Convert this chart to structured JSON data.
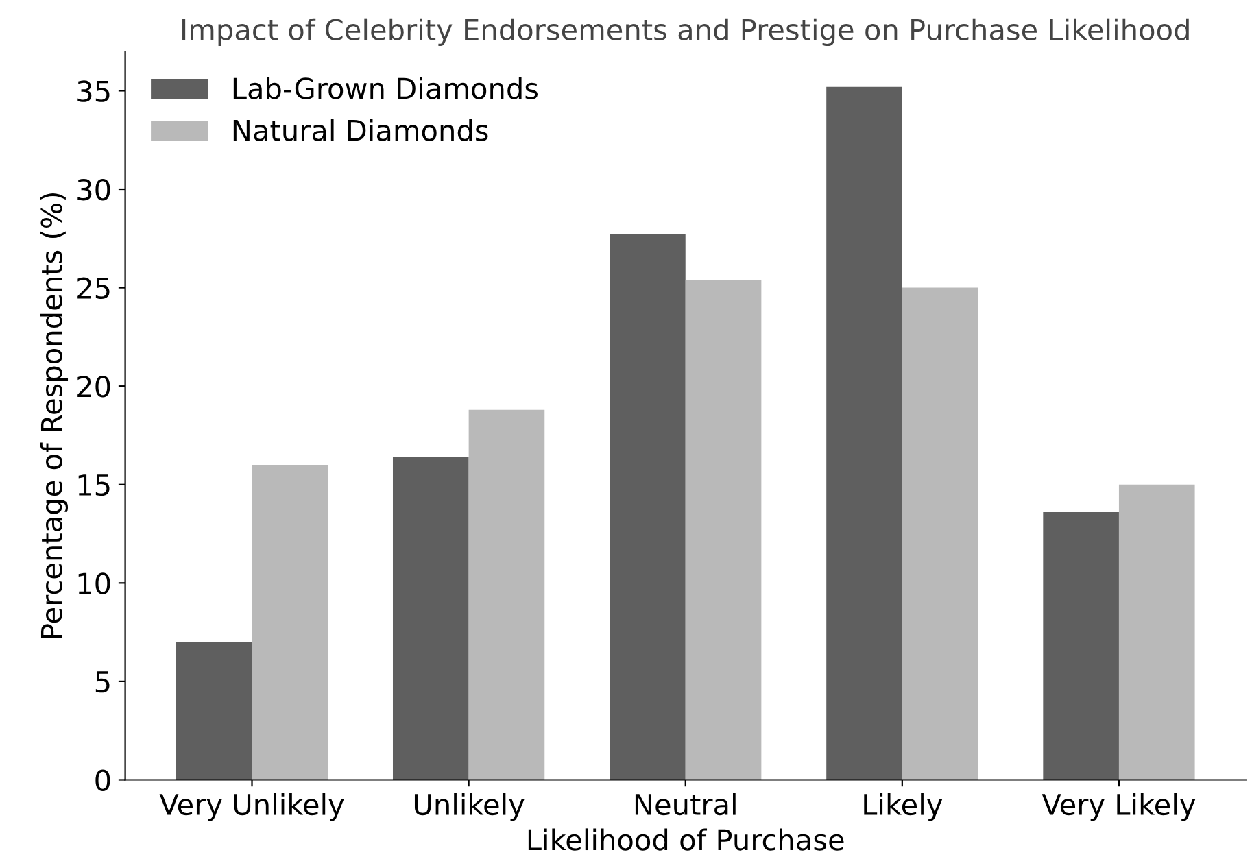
{
  "chart_data": {
    "type": "bar",
    "title": "Impact of Celebrity Endorsements and Prestige on Purchase Likelihood",
    "xlabel": "Likelihood of Purchase",
    "ylabel": "Percentage of Respondents (%)",
    "categories": [
      "Very Unlikely",
      "Unlikely",
      "Neutral",
      "Likely",
      "Very Likely"
    ],
    "series": [
      {
        "name": "Lab-Grown Diamonds",
        "color": "#5f5f5f",
        "values": [
          7.0,
          16.4,
          27.7,
          35.2,
          13.6
        ]
      },
      {
        "name": "Natural Diamonds",
        "color": "#b9b9b9",
        "values": [
          16.0,
          18.8,
          25.4,
          25.0,
          15.0
        ]
      }
    ],
    "ylim": [
      0,
      37
    ],
    "yticks": [
      0,
      5,
      10,
      15,
      20,
      25,
      30,
      35
    ],
    "grid": false,
    "legend": "top left"
  }
}
